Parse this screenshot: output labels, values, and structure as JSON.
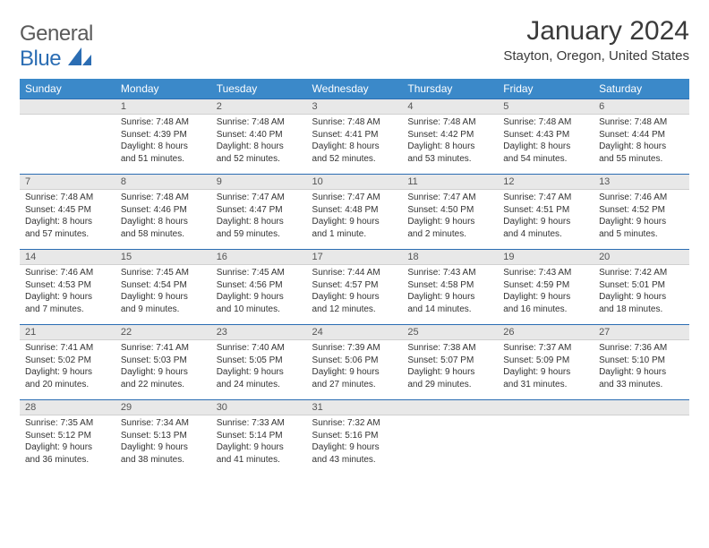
{
  "logo": {
    "general": "General",
    "blue": "Blue"
  },
  "title": "January 2024",
  "location": "Stayton, Oregon, United States",
  "colors": {
    "header_bg": "#3b89c9",
    "header_text": "#ffffff",
    "daynum_bg": "#e8e8e8",
    "border": "#2b6db3",
    "logo_gray": "#5a5a5a",
    "logo_blue": "#2b6db3"
  },
  "day_headers": [
    "Sunday",
    "Monday",
    "Tuesday",
    "Wednesday",
    "Thursday",
    "Friday",
    "Saturday"
  ],
  "weeks": [
    [
      {
        "n": "",
        "sr": "",
        "ss": "",
        "dl1": "",
        "dl2": ""
      },
      {
        "n": "1",
        "sr": "Sunrise: 7:48 AM",
        "ss": "Sunset: 4:39 PM",
        "dl1": "Daylight: 8 hours",
        "dl2": "and 51 minutes."
      },
      {
        "n": "2",
        "sr": "Sunrise: 7:48 AM",
        "ss": "Sunset: 4:40 PM",
        "dl1": "Daylight: 8 hours",
        "dl2": "and 52 minutes."
      },
      {
        "n": "3",
        "sr": "Sunrise: 7:48 AM",
        "ss": "Sunset: 4:41 PM",
        "dl1": "Daylight: 8 hours",
        "dl2": "and 52 minutes."
      },
      {
        "n": "4",
        "sr": "Sunrise: 7:48 AM",
        "ss": "Sunset: 4:42 PM",
        "dl1": "Daylight: 8 hours",
        "dl2": "and 53 minutes."
      },
      {
        "n": "5",
        "sr": "Sunrise: 7:48 AM",
        "ss": "Sunset: 4:43 PM",
        "dl1": "Daylight: 8 hours",
        "dl2": "and 54 minutes."
      },
      {
        "n": "6",
        "sr": "Sunrise: 7:48 AM",
        "ss": "Sunset: 4:44 PM",
        "dl1": "Daylight: 8 hours",
        "dl2": "and 55 minutes."
      }
    ],
    [
      {
        "n": "7",
        "sr": "Sunrise: 7:48 AM",
        "ss": "Sunset: 4:45 PM",
        "dl1": "Daylight: 8 hours",
        "dl2": "and 57 minutes."
      },
      {
        "n": "8",
        "sr": "Sunrise: 7:48 AM",
        "ss": "Sunset: 4:46 PM",
        "dl1": "Daylight: 8 hours",
        "dl2": "and 58 minutes."
      },
      {
        "n": "9",
        "sr": "Sunrise: 7:47 AM",
        "ss": "Sunset: 4:47 PM",
        "dl1": "Daylight: 8 hours",
        "dl2": "and 59 minutes."
      },
      {
        "n": "10",
        "sr": "Sunrise: 7:47 AM",
        "ss": "Sunset: 4:48 PM",
        "dl1": "Daylight: 9 hours",
        "dl2": "and 1 minute."
      },
      {
        "n": "11",
        "sr": "Sunrise: 7:47 AM",
        "ss": "Sunset: 4:50 PM",
        "dl1": "Daylight: 9 hours",
        "dl2": "and 2 minutes."
      },
      {
        "n": "12",
        "sr": "Sunrise: 7:47 AM",
        "ss": "Sunset: 4:51 PM",
        "dl1": "Daylight: 9 hours",
        "dl2": "and 4 minutes."
      },
      {
        "n": "13",
        "sr": "Sunrise: 7:46 AM",
        "ss": "Sunset: 4:52 PM",
        "dl1": "Daylight: 9 hours",
        "dl2": "and 5 minutes."
      }
    ],
    [
      {
        "n": "14",
        "sr": "Sunrise: 7:46 AM",
        "ss": "Sunset: 4:53 PM",
        "dl1": "Daylight: 9 hours",
        "dl2": "and 7 minutes."
      },
      {
        "n": "15",
        "sr": "Sunrise: 7:45 AM",
        "ss": "Sunset: 4:54 PM",
        "dl1": "Daylight: 9 hours",
        "dl2": "and 9 minutes."
      },
      {
        "n": "16",
        "sr": "Sunrise: 7:45 AM",
        "ss": "Sunset: 4:56 PM",
        "dl1": "Daylight: 9 hours",
        "dl2": "and 10 minutes."
      },
      {
        "n": "17",
        "sr": "Sunrise: 7:44 AM",
        "ss": "Sunset: 4:57 PM",
        "dl1": "Daylight: 9 hours",
        "dl2": "and 12 minutes."
      },
      {
        "n": "18",
        "sr": "Sunrise: 7:43 AM",
        "ss": "Sunset: 4:58 PM",
        "dl1": "Daylight: 9 hours",
        "dl2": "and 14 minutes."
      },
      {
        "n": "19",
        "sr": "Sunrise: 7:43 AM",
        "ss": "Sunset: 4:59 PM",
        "dl1": "Daylight: 9 hours",
        "dl2": "and 16 minutes."
      },
      {
        "n": "20",
        "sr": "Sunrise: 7:42 AM",
        "ss": "Sunset: 5:01 PM",
        "dl1": "Daylight: 9 hours",
        "dl2": "and 18 minutes."
      }
    ],
    [
      {
        "n": "21",
        "sr": "Sunrise: 7:41 AM",
        "ss": "Sunset: 5:02 PM",
        "dl1": "Daylight: 9 hours",
        "dl2": "and 20 minutes."
      },
      {
        "n": "22",
        "sr": "Sunrise: 7:41 AM",
        "ss": "Sunset: 5:03 PM",
        "dl1": "Daylight: 9 hours",
        "dl2": "and 22 minutes."
      },
      {
        "n": "23",
        "sr": "Sunrise: 7:40 AM",
        "ss": "Sunset: 5:05 PM",
        "dl1": "Daylight: 9 hours",
        "dl2": "and 24 minutes."
      },
      {
        "n": "24",
        "sr": "Sunrise: 7:39 AM",
        "ss": "Sunset: 5:06 PM",
        "dl1": "Daylight: 9 hours",
        "dl2": "and 27 minutes."
      },
      {
        "n": "25",
        "sr": "Sunrise: 7:38 AM",
        "ss": "Sunset: 5:07 PM",
        "dl1": "Daylight: 9 hours",
        "dl2": "and 29 minutes."
      },
      {
        "n": "26",
        "sr": "Sunrise: 7:37 AM",
        "ss": "Sunset: 5:09 PM",
        "dl1": "Daylight: 9 hours",
        "dl2": "and 31 minutes."
      },
      {
        "n": "27",
        "sr": "Sunrise: 7:36 AM",
        "ss": "Sunset: 5:10 PM",
        "dl1": "Daylight: 9 hours",
        "dl2": "and 33 minutes."
      }
    ],
    [
      {
        "n": "28",
        "sr": "Sunrise: 7:35 AM",
        "ss": "Sunset: 5:12 PM",
        "dl1": "Daylight: 9 hours",
        "dl2": "and 36 minutes."
      },
      {
        "n": "29",
        "sr": "Sunrise: 7:34 AM",
        "ss": "Sunset: 5:13 PM",
        "dl1": "Daylight: 9 hours",
        "dl2": "and 38 minutes."
      },
      {
        "n": "30",
        "sr": "Sunrise: 7:33 AM",
        "ss": "Sunset: 5:14 PM",
        "dl1": "Daylight: 9 hours",
        "dl2": "and 41 minutes."
      },
      {
        "n": "31",
        "sr": "Sunrise: 7:32 AM",
        "ss": "Sunset: 5:16 PM",
        "dl1": "Daylight: 9 hours",
        "dl2": "and 43 minutes."
      },
      {
        "n": "",
        "sr": "",
        "ss": "",
        "dl1": "",
        "dl2": ""
      },
      {
        "n": "",
        "sr": "",
        "ss": "",
        "dl1": "",
        "dl2": ""
      },
      {
        "n": "",
        "sr": "",
        "ss": "",
        "dl1": "",
        "dl2": ""
      }
    ]
  ]
}
